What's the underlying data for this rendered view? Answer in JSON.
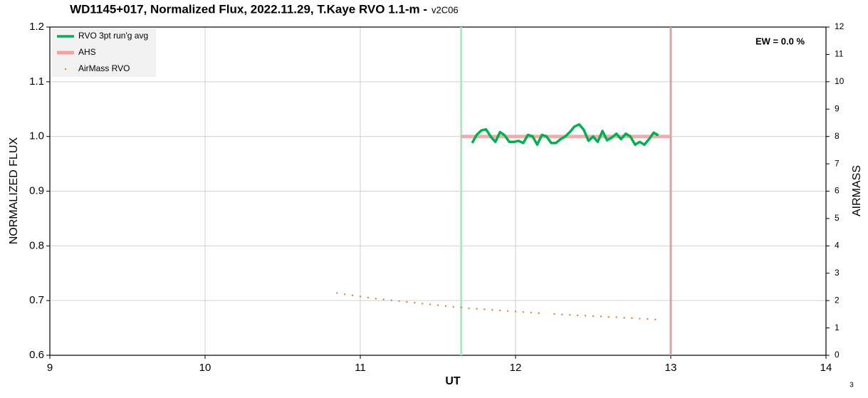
{
  "chart_data": {
    "type": "line",
    "title": "WD1145+017, Normalized Flux, 2022.11.29, T.Kaye RVO 1.1-m -",
    "subtitle": "v2C06",
    "x_label": "UT",
    "y_label": "NORMALIZED FLUX",
    "y2_label": "AIRMASS",
    "annotation": "EW = 0.0 %",
    "footnote": "3",
    "xlim": [
      9,
      14
    ],
    "xticks": [
      9,
      10,
      11,
      12,
      13,
      14
    ],
    "ylim": [
      0.6,
      1.2
    ],
    "yticks": [
      0.6,
      0.7,
      0.8,
      0.9,
      {
        "value": 1,
        "label": "1.0"
      },
      1.1,
      1.2
    ],
    "y2lim": [
      0,
      12
    ],
    "y2ticks": [
      0,
      1,
      2,
      3,
      4,
      5,
      6,
      7,
      8,
      9,
      10,
      11,
      12
    ],
    "grid": true,
    "legend": "top-left",
    "vlines": [
      {
        "x": 11.65,
        "color": "#b5e2c8"
      },
      {
        "x": 13.0,
        "color": "#d9a3a3"
      }
    ],
    "series": [
      {
        "name": "RVO 3pt run'g avg",
        "color": "#00b050",
        "style": "line",
        "x": [
          11.72,
          11.75,
          11.78,
          11.81,
          11.84,
          11.87,
          11.9,
          11.93,
          11.96,
          11.99,
          12.02,
          12.05,
          12.08,
          12.11,
          12.14,
          12.17,
          12.2,
          12.23,
          12.26,
          12.29,
          12.32,
          12.35,
          12.38,
          12.41,
          12.44,
          12.47,
          12.5,
          12.53,
          12.56,
          12.59,
          12.62,
          12.65,
          12.68,
          12.71,
          12.74,
          12.77,
          12.8,
          12.83,
          12.86,
          12.89,
          12.92
        ],
        "values": [
          0.988,
          1.003,
          1.011,
          1.013,
          1.0,
          0.99,
          1.008,
          1.002,
          0.99,
          0.99,
          0.992,
          0.988,
          1.003,
          1.0,
          0.985,
          1.003,
          1.0,
          0.988,
          0.988,
          0.995,
          1.0,
          1.008,
          1.018,
          1.022,
          1.012,
          0.992,
          1.0,
          0.99,
          1.01,
          0.993,
          0.998,
          1.005,
          0.995,
          1.005,
          1.0,
          0.985,
          0.99,
          0.985,
          0.995,
          1.007,
          1.002
        ]
      },
      {
        "name": "AHS",
        "color": "#f2a0a0",
        "style": "thick",
        "x": [
          11.65,
          13.0
        ],
        "values": [
          1,
          1
        ]
      },
      {
        "name": "AirMass RVO",
        "color": "#d9823b",
        "style": "dots",
        "axis": "y2",
        "x": [
          10.85,
          10.9,
          10.95,
          11.0,
          11.05,
          11.1,
          11.15,
          11.2,
          11.25,
          11.3,
          11.35,
          11.4,
          11.45,
          11.5,
          11.55,
          11.6,
          11.65,
          11.7,
          11.75,
          11.8,
          11.85,
          11.9,
          11.95,
          12.0,
          12.05,
          12.1,
          12.15,
          12.2,
          12.25,
          12.3,
          12.35,
          12.4,
          12.45,
          12.5,
          12.55,
          12.6,
          12.65,
          12.7,
          12.75,
          12.8,
          12.85,
          12.9
        ],
        "values": [
          2.28,
          2.23,
          2.19,
          2.15,
          2.11,
          2.07,
          2.04,
          2.01,
          1.98,
          1.95,
          1.92,
          1.89,
          1.86,
          1.83,
          1.8,
          1.77,
          1.75,
          1.72,
          1.7,
          1.68,
          1.66,
          1.64,
          1.62,
          1.6,
          1.58,
          1.56,
          1.54,
          null,
          1.51,
          1.49,
          1.48,
          1.46,
          1.45,
          1.43,
          1.42,
          1.4,
          1.39,
          1.37,
          1.36,
          1.34,
          1.33,
          1.31
        ]
      }
    ]
  }
}
